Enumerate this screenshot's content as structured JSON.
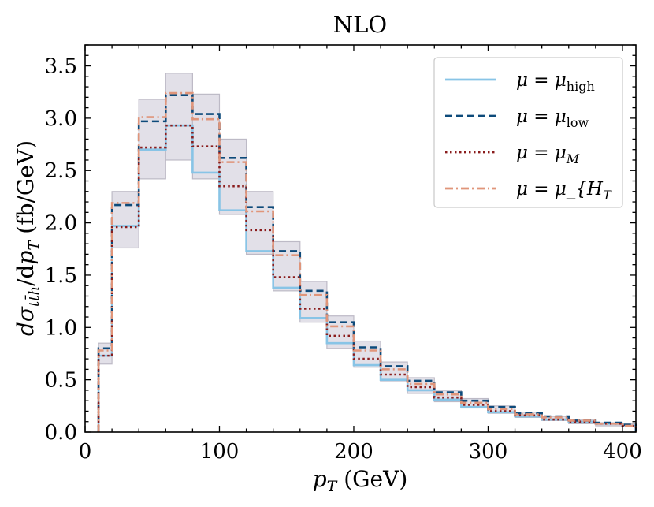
{
  "chart_data": {
    "type": "line",
    "title": "NLO",
    "xlabel": "p_T (GeV)",
    "ylabel": "dσ_{tt̄h}/dp_T (fb/GeV)",
    "xlim": [
      0,
      410
    ],
    "ylim": [
      0,
      3.7
    ],
    "xticks": [
      "0",
      "100",
      "200",
      "300",
      "400"
    ],
    "yticks": [
      "0.0",
      "0.5",
      "1.0",
      "1.5",
      "2.0",
      "2.5",
      "3.0",
      "3.5"
    ],
    "grid": false,
    "legend_position": "top-right",
    "bin_edges": [
      10,
      20,
      40,
      60,
      80,
      100,
      120,
      140,
      160,
      180,
      200,
      220,
      240,
      260,
      280,
      300,
      320,
      340,
      360,
      380,
      400,
      410
    ],
    "band": {
      "lower": [
        0.65,
        1.76,
        2.42,
        2.6,
        2.42,
        2.08,
        1.7,
        1.35,
        1.05,
        0.8,
        0.62,
        0.48,
        0.37,
        0.29,
        0.23,
        0.18,
        0.14,
        0.11,
        0.08,
        0.06,
        0.05
      ],
      "upper": [
        0.85,
        2.3,
        3.18,
        3.43,
        3.23,
        2.8,
        2.3,
        1.82,
        1.44,
        1.11,
        0.87,
        0.67,
        0.52,
        0.4,
        0.32,
        0.25,
        0.19,
        0.15,
        0.12,
        0.09,
        0.08
      ],
      "color": "#d8d5e0"
    },
    "series": [
      {
        "name": "μ = μ_high",
        "color": "#88c4e6",
        "dash": "",
        "values": [
          0.73,
          1.97,
          2.7,
          2.93,
          2.48,
          2.12,
          1.73,
          1.38,
          1.09,
          0.85,
          0.64,
          0.5,
          0.4,
          0.31,
          0.24,
          0.19,
          0.15,
          0.12,
          0.1,
          0.08,
          0.06
        ]
      },
      {
        "name": "μ = μ_low",
        "color": "#0d4a7a",
        "dash": "9,5",
        "values": [
          0.8,
          2.17,
          2.97,
          3.22,
          3.04,
          2.62,
          2.15,
          1.73,
          1.35,
          1.05,
          0.81,
          0.63,
          0.49,
          0.38,
          0.3,
          0.24,
          0.18,
          0.15,
          0.11,
          0.09,
          0.07
        ]
      },
      {
        "name": "μ = μ_M",
        "color": "#8a1c1c",
        "dash": "2.5,3.5",
        "values": [
          0.73,
          1.96,
          2.72,
          2.93,
          2.73,
          2.35,
          1.93,
          1.48,
          1.18,
          0.92,
          0.7,
          0.55,
          0.43,
          0.33,
          0.26,
          0.2,
          0.16,
          0.12,
          0.1,
          0.08,
          0.06
        ]
      },
      {
        "name": "μ = μ_{H_T}",
        "color": "#e0957a",
        "dash": "10,4,2,4",
        "values": [
          0.78,
          2.19,
          3.01,
          3.24,
          2.99,
          2.58,
          2.11,
          1.69,
          1.31,
          1.01,
          0.78,
          0.6,
          0.46,
          0.36,
          0.28,
          0.22,
          0.17,
          0.14,
          0.11,
          0.08,
          0.06
        ]
      }
    ]
  }
}
